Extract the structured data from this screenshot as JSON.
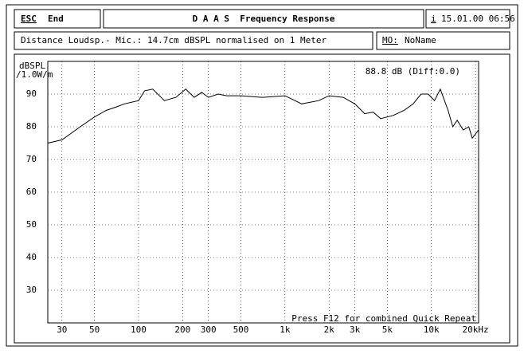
{
  "header": {
    "esc_key": "ESC",
    "esc_label": "End",
    "title": "D A A S  Frequency Response",
    "info_key": "i",
    "datetime": "15.01.00 06:56",
    "measurement": "Distance Loudsp.- Mic.: 14.7cm dBSPL normalised on 1 Meter",
    "memory_key": "MO:",
    "memory_name": "NoName"
  },
  "chart_data": {
    "type": "line",
    "y_label": "dBSPL",
    "y_label_unit": "/1.0W/m",
    "readout": "88.8 dB (Diff:0.0)",
    "footer": "Press F12 for combined Quick Repeat",
    "log_x": true,
    "grid": true,
    "color": "#000000",
    "xlim": [
      24,
      21000
    ],
    "ylim": [
      20,
      100
    ],
    "xticks": [
      30,
      50,
      100,
      200,
      300,
      500,
      {
        "value": 1000,
        "label": "1k"
      },
      {
        "value": 2000,
        "label": "2k"
      },
      {
        "value": 3000,
        "label": "3k"
      },
      {
        "value": 5000,
        "label": "5k"
      },
      {
        "value": 10000,
        "label": "10k"
      },
      {
        "value": 20000,
        "label": "20kHz"
      }
    ],
    "yticks": [
      30,
      40,
      50,
      60,
      70,
      80,
      90
    ],
    "x": [
      24,
      30,
      40,
      50,
      60,
      70,
      80,
      100,
      110,
      125,
      150,
      180,
      210,
      240,
      270,
      300,
      350,
      400,
      500,
      700,
      1000,
      1300,
      1700,
      2000,
      2500,
      3000,
      3500,
      4000,
      4500,
      5500,
      6500,
      7500,
      8500,
      9500,
      10500,
      11500,
      13000,
      14000,
      15000,
      16500,
      18000,
      19000,
      21000
    ],
    "values": [
      75,
      76,
      80,
      83,
      85,
      86,
      87,
      88,
      91,
      91.5,
      88,
      89,
      91.5,
      89,
      90.5,
      89,
      90,
      89.5,
      89.5,
      89,
      89.5,
      87,
      88,
      89.5,
      89,
      87,
      84,
      84.5,
      82.5,
      83.5,
      85,
      87,
      90,
      90,
      88,
      91.5,
      85,
      80,
      82,
      79,
      80,
      76.5,
      79
    ]
  }
}
